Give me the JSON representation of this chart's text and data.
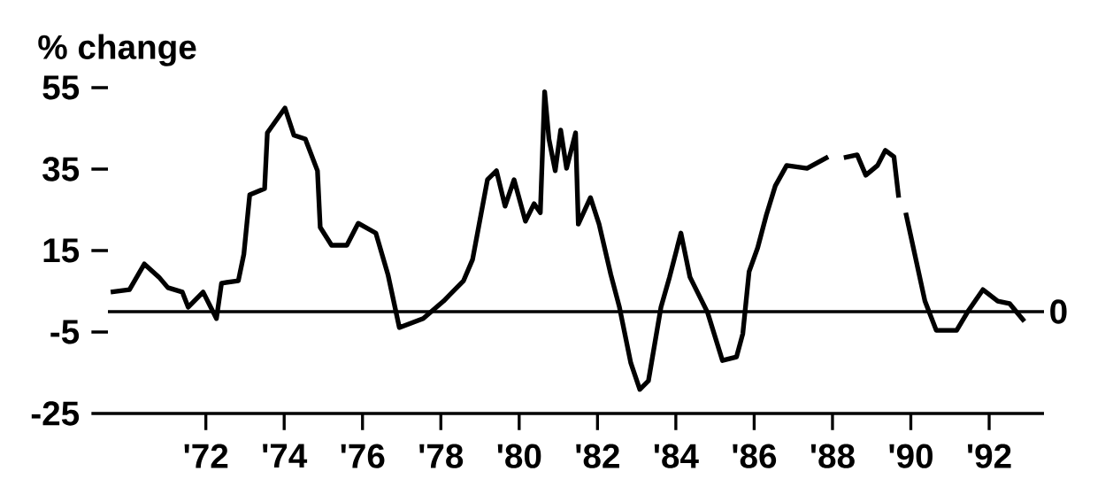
{
  "chart_data": {
    "type": "line",
    "ylabel": "% change",
    "x": [
      1969.57,
      1970.05,
      1970.43,
      1970.8,
      1971.03,
      1971.4,
      1971.55,
      1971.93,
      1972.27,
      1972.4,
      1972.83,
      1972.97,
      1973.12,
      1973.5,
      1973.57,
      1974.02,
      1974.25,
      1974.54,
      1974.85,
      1974.92,
      1975.21,
      1975.6,
      1975.89,
      1976.34,
      1976.65,
      1976.94,
      1977.55,
      1978.07,
      1978.58,
      1978.81,
      1979.19,
      1979.42,
      1979.64,
      1979.87,
      1980.16,
      1980.38,
      1980.54,
      1980.65,
      1980.76,
      1980.92,
      1981.06,
      1981.21,
      1981.44,
      1981.51,
      1981.82,
      1982.04,
      1982.34,
      1982.56,
      1982.85,
      1983.08,
      1983.3,
      1983.62,
      1983.84,
      1984.13,
      1984.36,
      1984.81,
      1985.19,
      1985.55,
      1985.71,
      1985.87,
      1986.09,
      1986.31,
      1986.54,
      1986.83,
      1987.35,
      1987.89,
      1988.1,
      1988.29,
      1988.63,
      1988.85,
      1989.15,
      1989.35,
      1989.57,
      1989.69,
      1989.78,
      1989.87,
      1990.36,
      1990.65,
      1991.17,
      1991.48,
      1991.84,
      1992.22,
      1992.52,
      1992.9
    ],
    "values": [
      4.8,
      5.4,
      11.7,
      8.5,
      5.9,
      4.8,
      1.1,
      4.8,
      -1.7,
      7.0,
      7.6,
      14.1,
      28.7,
      30.2,
      43.9,
      50,
      43.3,
      42.4,
      34.6,
      20.7,
      16.3,
      16.3,
      21.7,
      19.3,
      9.1,
      -3.9,
      -1.7,
      2.6,
      7.6,
      12.8,
      32.4,
      34.6,
      25.9,
      32.4,
      22.2,
      26.5,
      24.3,
      54,
      42.4,
      34.6,
      44.6,
      35.2,
      43.9,
      21.5,
      28.0,
      21.5,
      9.1,
      1.1,
      -12.6,
      -19.1,
      -17,
      1.1,
      8.5,
      19.3,
      8.5,
      -0.2,
      -12,
      -11.1,
      -5.4,
      9.8,
      15.7,
      23.7,
      30.9,
      35.9,
      35.2,
      38.0,
      null,
      37.8,
      38.5,
      33.5,
      35.9,
      39.6,
      38,
      28,
      null,
      24.3,
      2.6,
      -4.6,
      -4.6,
      0.4,
      5.4,
      2.6,
      2.0,
      -2.4
    ],
    "color": "#000000",
    "xlim": [
      1969.5,
      1993.4
    ],
    "xticks": [
      {
        "value": 1972,
        "label": "'72"
      },
      {
        "value": 1974,
        "label": "'74"
      },
      {
        "value": 1976,
        "label": "'76"
      },
      {
        "value": 1978,
        "label": "'78"
      },
      {
        "value": 1980,
        "label": "'80"
      },
      {
        "value": 1982,
        "label": "'82"
      },
      {
        "value": 1984,
        "label": "'84"
      },
      {
        "value": 1986,
        "label": "'86"
      },
      {
        "value": 1988,
        "label": "'88"
      },
      {
        "value": 1990,
        "label": "'90"
      },
      {
        "value": 1992,
        "label": "'92"
      }
    ],
    "ylim": [
      -25,
      55
    ],
    "yticks": [
      55,
      35,
      15,
      -5,
      -25
    ],
    "ref_lines": [
      {
        "axis": "y",
        "value": 0,
        "label": "0"
      }
    ],
    "grid": false,
    "marker": "none",
    "line_style": "solid"
  }
}
